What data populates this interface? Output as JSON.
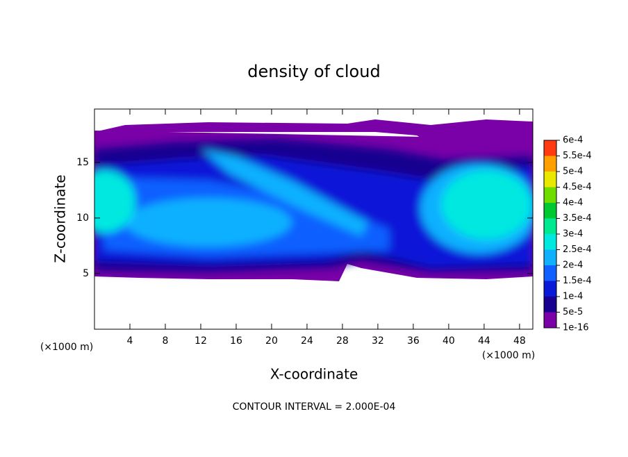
{
  "chart_data": {
    "type": "contour",
    "title": "density of cloud",
    "x_label": "X-coordinate",
    "y_label": "Z-coordinate",
    "x_unit": "(×1000 m)",
    "y_unit": "(×1000 m)",
    "xlim": [
      0,
      49.5
    ],
    "xticks": [
      4,
      8,
      12,
      16,
      20,
      24,
      28,
      32,
      36,
      40,
      44,
      48
    ],
    "ylim": [
      0,
      19.8
    ],
    "yticks": [
      5,
      10,
      15
    ],
    "colorbar": {
      "levels": [
        {
          "value": 1e-16,
          "label": "1e-16"
        },
        {
          "value": 5e-05,
          "label": "5e-5"
        },
        {
          "value": 0.0001,
          "label": "1e-4"
        },
        {
          "value": 0.00015,
          "label": "1.5e-4"
        },
        {
          "value": 0.0002,
          "label": "2e-4"
        },
        {
          "value": 0.00025,
          "label": "2.5e-4"
        },
        {
          "value": 0.0003,
          "label": "3e-4"
        },
        {
          "value": 0.00035,
          "label": "3.5e-4"
        },
        {
          "value": 0.0004,
          "label": "4e-4"
        },
        {
          "value": 0.00045,
          "label": "4.5e-4"
        },
        {
          "value": 0.0005,
          "label": "5e-4"
        },
        {
          "value": 0.00055,
          "label": "5.5e-4"
        },
        {
          "value": 0.0006,
          "label": "6e-4"
        }
      ],
      "colors": [
        "#7a00a8",
        "#180090",
        "#0a18d8",
        "#1060ff",
        "#10b0ff",
        "#00e8e0",
        "#00e890",
        "#00c830",
        "#70dd00",
        "#e8e800",
        "#ffa000",
        "#ff3a10",
        "#ff8888"
      ]
    },
    "annotation": "CONTOUR INTERVAL = 2.000E-04"
  }
}
